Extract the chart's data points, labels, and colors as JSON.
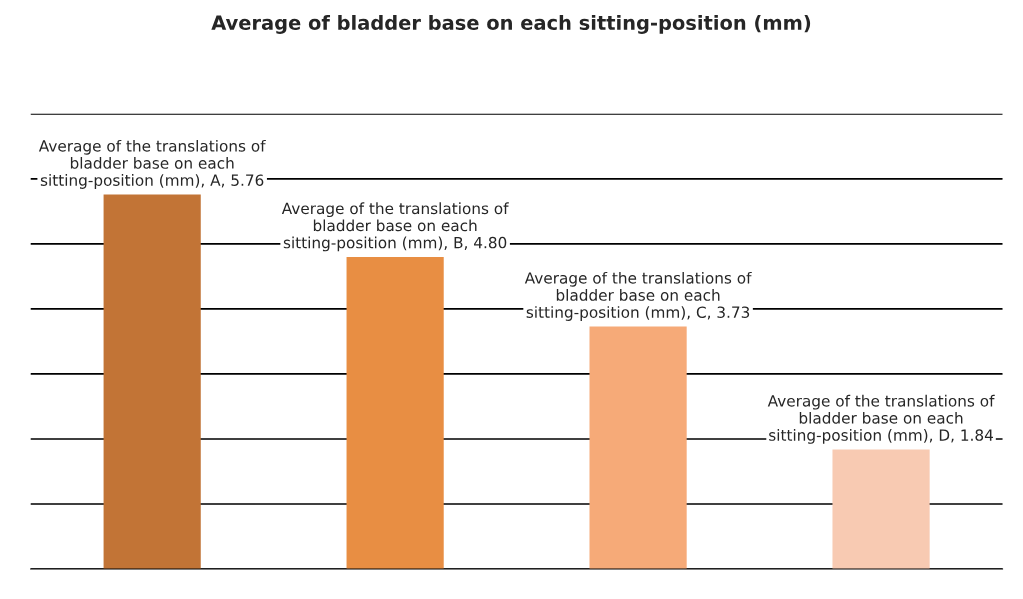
{
  "chart_data": {
    "type": "bar",
    "title": "Average of bladder base on each sitting-position (mm)",
    "categories": [
      null,
      null,
      null,
      null
    ],
    "values": [
      5.76,
      4.8,
      3.73,
      1.84
    ],
    "colors": [
      "#c27436",
      "#e88e43",
      "#f6aa78",
      "#f8cab2"
    ],
    "value_labels": [
      "Average of the translations of bladder base on each sitting-position (mm), A, 5.76",
      "Average of the translations of bladder base on each sitting-position (mm), B, 4.80",
      "Average of the translations of bladder base on each sitting-position (mm), C, 3.73",
      "Average of the translations of bladder base on each sitting-position (mm), D, 1.84"
    ],
    "ylim": [
      0,
      7
    ],
    "yticks": [
      {
        "value": 0,
        "label": null
      },
      {
        "value": 1,
        "label": null
      },
      {
        "value": 2,
        "label": null
      },
      {
        "value": 3,
        "label": null
      },
      {
        "value": 4,
        "label": null
      },
      {
        "value": 5,
        "label": null
      },
      {
        "value": 6,
        "label": null
      },
      {
        "value": 7,
        "label": null
      }
    ],
    "grid": "y",
    "legend": false
  }
}
